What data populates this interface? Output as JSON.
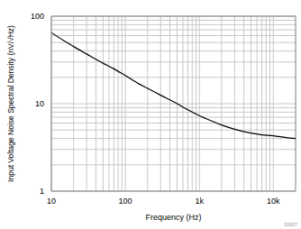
{
  "chart_data": {
    "type": "line",
    "log": true,
    "grid": true,
    "x_label": "Frequency (Hz)",
    "y_label": "Input Voltage Noise Spectral Density (nV/√Hz)",
    "annotation": "D007",
    "xlim": [
      10,
      20000
    ],
    "ylim": [
      1,
      100
    ],
    "xticks": [
      10,
      100,
      {
        "value": 1000,
        "label": "1k"
      },
      {
        "value": 10000,
        "label": "10k"
      }
    ],
    "yticks": [
      1,
      10,
      100
    ],
    "x": [
      10,
      15,
      20,
      30,
      50,
      70,
      100,
      150,
      200,
      300,
      500,
      700,
      1000,
      1500,
      2000,
      3000,
      5000,
      7000,
      10000,
      15000,
      20000
    ],
    "series": [
      {
        "name": "Input Voltage Noise",
        "color": "#000000",
        "values": [
          65,
          52,
          45,
          37,
          29,
          25,
          21,
          17,
          15,
          12.5,
          10,
          8.5,
          7.3,
          6.3,
          5.7,
          5.1,
          4.6,
          4.4,
          4.3,
          4.1,
          4.0
        ]
      }
    ]
  }
}
